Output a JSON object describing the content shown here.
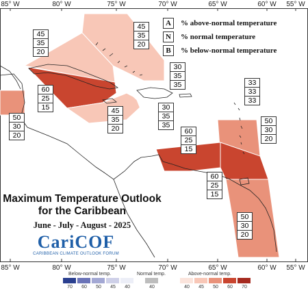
{
  "lon_labels": [
    "85° W",
    "80° W",
    "75° W",
    "70° W",
    "65° W",
    "60° W",
    "55° W"
  ],
  "legend_top": [
    {
      "key": "A",
      "text": "% above-normal temperature"
    },
    {
      "key": "N",
      "text": "% normal temperature"
    },
    {
      "key": "B",
      "text": "% below-normal temperature"
    }
  ],
  "regions": [
    {
      "name": "bahamas",
      "above": 45,
      "normal": 35,
      "below": 20,
      "color": "#f8c7b7"
    },
    {
      "name": "cuba",
      "above": 45,
      "normal": 35,
      "below": 20,
      "color": "#f8c7b7"
    },
    {
      "name": "central-cuba",
      "above": 60,
      "normal": 25,
      "below": 15,
      "color": "#c9452f"
    },
    {
      "name": "cayman-jamaica",
      "above": 45,
      "normal": 35,
      "below": 20,
      "color": "#f8c7b7"
    },
    {
      "name": "belize",
      "above": 50,
      "normal": 30,
      "below": 20,
      "color": "#e9927a"
    },
    {
      "name": "hispaniola",
      "above": 30,
      "normal": 35,
      "below": 35,
      "color": "#ffffff"
    },
    {
      "name": "central-caribbean",
      "above": 30,
      "normal": 35,
      "below": 35,
      "color": "#ffffff"
    },
    {
      "name": "northern-leewards",
      "above": 33,
      "normal": 33,
      "below": 33,
      "color": "#ffffff"
    },
    {
      "name": "eastern-caribbean",
      "above": 50,
      "normal": 30,
      "below": 20,
      "color": "#e9927a"
    },
    {
      "name": "southern-caribbean",
      "above": 60,
      "normal": 25,
      "below": 15,
      "color": "#c9452f"
    },
    {
      "name": "trinidad",
      "above": 60,
      "normal": 25,
      "below": 15,
      "color": "#c9452f"
    },
    {
      "name": "guianas",
      "above": 50,
      "normal": 30,
      "below": 20,
      "color": "#e9927a"
    }
  ],
  "title_line1": "Maximum Temperature Outlook",
  "title_line2": "for the Caribbean",
  "subtitle": "June - July - August - 2025",
  "logo_name": "CariCOF",
  "logo_forum": "CARIBBEAN CLIMATE OUTLOOK FORUM",
  "bottom_legend": {
    "below_label": "Below-normal temp.",
    "normal_label": "Normal temp.",
    "above_label": "Above-normal temp.",
    "below_colors": [
      "#2a3f8f",
      "#6b74b8",
      "#a3a8d4",
      "#ced0e8",
      "#eceef7"
    ],
    "below_ticks": [
      "70",
      "60",
      "50",
      "45",
      "40"
    ],
    "normal_color": "#bdbdbd",
    "normal_ticks": [
      "40"
    ],
    "above_colors": [
      "#fbe4dc",
      "#f8c7b7",
      "#e9927a",
      "#c9452f",
      "#a52a1f"
    ],
    "above_ticks": [
      "40",
      "45",
      "50",
      "60",
      "70"
    ]
  }
}
